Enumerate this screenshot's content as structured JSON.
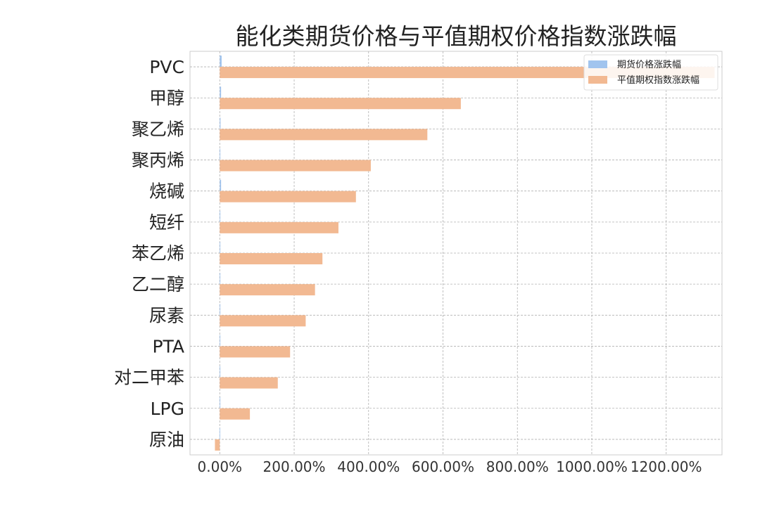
{
  "chart_data": {
    "type": "bar",
    "orientation": "horizontal",
    "title": "能化类期货价格与平值期权价格指数涨跌幅",
    "categories": [
      "PVC",
      "甲醇",
      "聚乙烯",
      "聚丙烯",
      "烧碱",
      "短纤",
      "苯乙烯",
      "乙二醇",
      "尿素",
      "PTA",
      "对二甲苯",
      "LPG",
      "原油"
    ],
    "series": [
      {
        "name": "期货价格涨跌幅",
        "color": "#a1c4ee",
        "values": [
          5.0,
          3.5,
          2.0,
          1.0,
          3.5,
          1.0,
          0.5,
          1.0,
          0.5,
          1.0,
          0.5,
          0.5,
          -0.5
        ]
      },
      {
        "name": "平值期权指数涨跌幅",
        "color": "#f2b992",
        "values": [
          1330,
          648,
          558,
          406,
          366,
          319,
          276,
          256,
          231,
          189,
          156,
          81,
          -13
        ]
      }
    ],
    "x_ticks": [
      "0.00%",
      "200.00%",
      "400.00%",
      "600.00%",
      "800.00%",
      "1000.00%",
      "1200.00%"
    ],
    "x_tick_values": [
      0,
      200,
      400,
      600,
      800,
      1000,
      1200
    ],
    "xlim": [
      -80,
      1350
    ],
    "grid": true,
    "legend_position": "upper-right",
    "xlabel": "",
    "ylabel": ""
  }
}
